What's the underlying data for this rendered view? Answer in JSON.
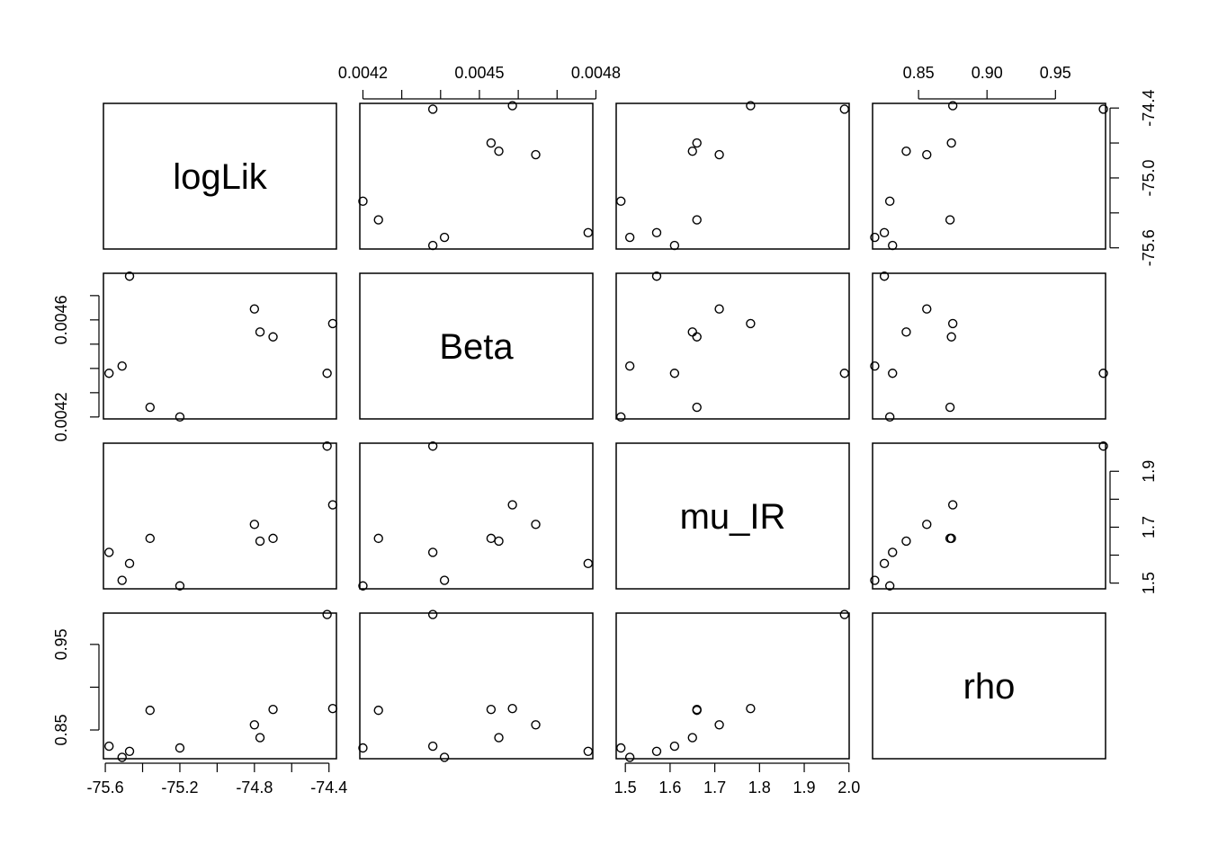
{
  "chart_data": {
    "type": "scatter",
    "layout": "pairs-matrix",
    "variables": [
      "logLik",
      "Beta",
      "mu_IR",
      "rho"
    ],
    "points": [
      {
        "logLik": -74.41,
        "Beta": 0.00438,
        "mu_IR": 1.99,
        "rho": 0.985
      },
      {
        "logLik": -74.38,
        "Beta": 0.004585,
        "mu_IR": 1.78,
        "rho": 0.875
      },
      {
        "logLik": -74.7,
        "Beta": 0.00453,
        "mu_IR": 1.66,
        "rho": 0.874
      },
      {
        "logLik": -74.77,
        "Beta": 0.00455,
        "mu_IR": 1.65,
        "rho": 0.841
      },
      {
        "logLik": -74.8,
        "Beta": 0.004645,
        "mu_IR": 1.71,
        "rho": 0.856
      },
      {
        "logLik": -75.2,
        "Beta": 0.0042,
        "mu_IR": 1.49,
        "rho": 0.829
      },
      {
        "logLik": -75.36,
        "Beta": 0.00424,
        "mu_IR": 1.66,
        "rho": 0.873
      },
      {
        "logLik": -75.47,
        "Beta": 0.00478,
        "mu_IR": 1.57,
        "rho": 0.825
      },
      {
        "logLik": -75.51,
        "Beta": 0.00441,
        "mu_IR": 1.51,
        "rho": 0.818
      },
      {
        "logLik": -75.58,
        "Beta": 0.00438,
        "mu_IR": 1.61,
        "rho": 0.831
      }
    ],
    "ranges": {
      "logLik": [
        -75.61,
        -74.36
      ],
      "Beta": [
        0.004192,
        0.004792
      ],
      "mu_IR": [
        1.4795,
        2.0005
      ],
      "rho": [
        0.8164,
        0.9866
      ]
    },
    "ticks": {
      "logLik": {
        "values": [
          -75.6,
          -75.4,
          -75.2,
          -75.0,
          -74.8,
          -74.6,
          -74.4
        ],
        "labels": [
          "-75.6",
          "",
          "-75.2",
          "",
          "-74.8",
          "",
          "-74.4"
        ],
        "side_labels": [
          "-75.6",
          "",
          "-75.0",
          "",
          "-74.4"
        ],
        "side_values": [
          -75.6,
          -75.3,
          -75.0,
          -74.7,
          -74.4
        ]
      },
      "Beta": {
        "values": [
          0.0042,
          0.0043,
          0.0044,
          0.0045,
          0.0046,
          0.0047,
          0.0048
        ],
        "labels": [
          "0.0042",
          "",
          "",
          "0.0045",
          "",
          "",
          "0.0048"
        ],
        "side_values": [
          0.0042,
          0.0043,
          0.0044,
          0.0045,
          0.0046,
          0.0047
        ],
        "side_labels": [
          "0.0042",
          "",
          "0.0046"
        ],
        "side_label_values": [
          0.0042,
          0.0044,
          0.0046
        ]
      },
      "mu_IR": {
        "values": [
          1.5,
          1.6,
          1.7,
          1.8,
          1.9,
          2.0
        ],
        "labels": [
          "1.5",
          "1.6",
          "1.7",
          "1.8",
          "1.9",
          "2.0"
        ],
        "side_values": [
          1.5,
          1.6,
          1.7,
          1.8,
          1.9
        ],
        "side_labels": [
          "1.5",
          "",
          "1.7",
          "",
          "1.9"
        ]
      },
      "rho": {
        "values": [
          0.8,
          0.85,
          0.9,
          0.95
        ],
        "labels": [
          "",
          "0.85",
          "0.90",
          "0.95"
        ],
        "side_values": [
          0.85,
          0.9,
          0.95
        ],
        "side_labels": [
          "0.85",
          "",
          "0.95"
        ]
      }
    },
    "grid": false,
    "legend": "none"
  }
}
